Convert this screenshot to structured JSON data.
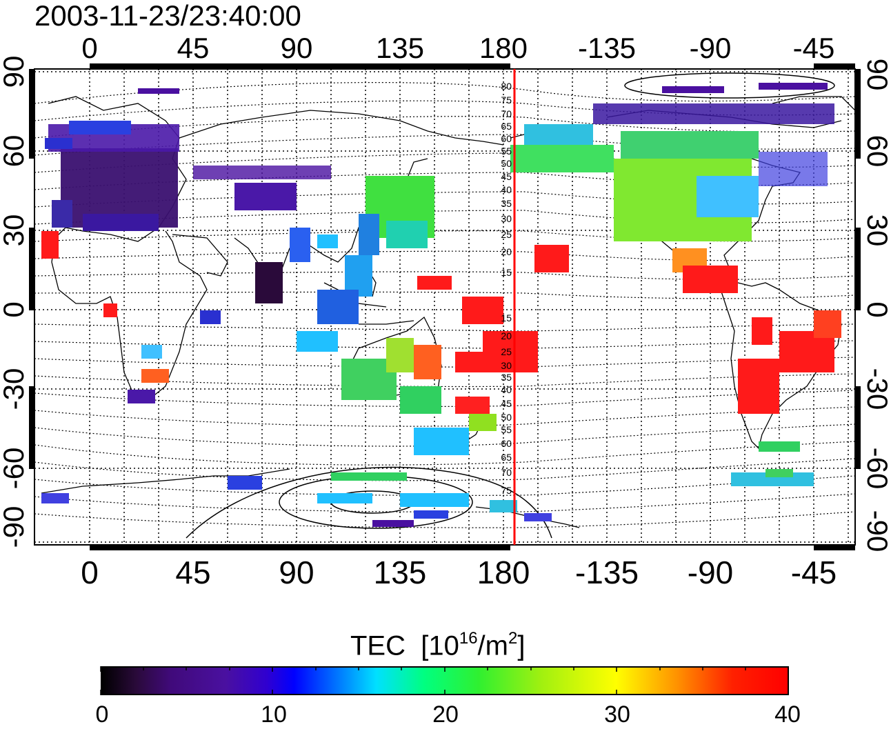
{
  "timestamp": "2003-11-23/23:40:00",
  "x_tick_labels": [
    "0",
    "45",
    "90",
    "135",
    "180",
    "-135",
    "-90",
    "-45"
  ],
  "y_tick_labels": [
    "90",
    "60",
    "30",
    "0",
    "-30",
    "-60",
    "-90"
  ],
  "mlat_labels_north": [
    "80",
    "75",
    "70",
    "65",
    "60",
    "55",
    "50",
    "45",
    "40",
    "35",
    "30",
    "25",
    "20",
    "15"
  ],
  "mlat_labels_south": [
    "15",
    "20",
    "25",
    "30",
    "35",
    "40",
    "45",
    "50",
    "55",
    "60",
    "65",
    "70",
    "75"
  ],
  "colorbar": {
    "title": "TEC",
    "unit_prefix": "[10",
    "unit_exp": "16",
    "unit_mid": "/m",
    "unit_exp2": "2",
    "unit_end": "]",
    "min": 0,
    "max": 40,
    "tick_labels": [
      "0",
      "10",
      "20",
      "30",
      "40"
    ]
  },
  "colors": {
    "meridian_marker": "#ff0000"
  }
}
